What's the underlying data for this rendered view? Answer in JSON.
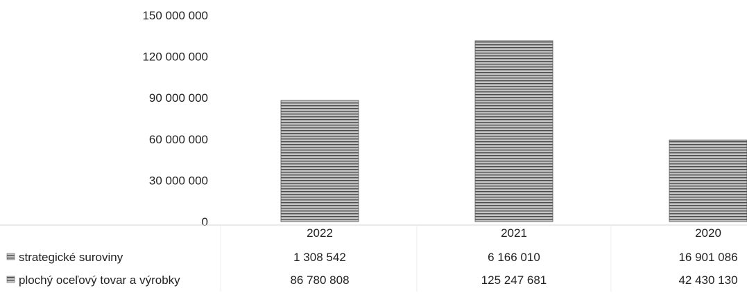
{
  "chart_data": {
    "type": "bar",
    "stacked": true,
    "categories": [
      "2022",
      "2021",
      "2020"
    ],
    "series": [
      {
        "name": "strategické suroviny",
        "values": [
          1308542,
          6166010,
          16901086
        ],
        "value_labels": [
          "1 308 542",
          "6 166 010",
          "16 901 086"
        ]
      },
      {
        "name": "plochý oceľový tovar a výrobky",
        "values": [
          86780808,
          125247681,
          42430130
        ],
        "value_labels": [
          "86 780 808",
          "125 247 681",
          "42 430 130"
        ]
      }
    ],
    "yticks": [
      {
        "value": 0,
        "label": "0"
      },
      {
        "value": 30000000,
        "label": "30 000 000"
      },
      {
        "value": 60000000,
        "label": "60 000 000"
      },
      {
        "value": 90000000,
        "label": "90 000 000"
      },
      {
        "value": 120000000,
        "label": "120 000 000"
      },
      {
        "value": 150000000,
        "label": "150 000 000"
      }
    ],
    "ylim": [
      0,
      150000000
    ],
    "grid": false,
    "legend": "data-table-left",
    "colors": {
      "bar_fill": "#a9a9a9",
      "bar_stripe": "#3a3a3a",
      "text": "#222222",
      "table_line": "#d6d6d6"
    }
  }
}
